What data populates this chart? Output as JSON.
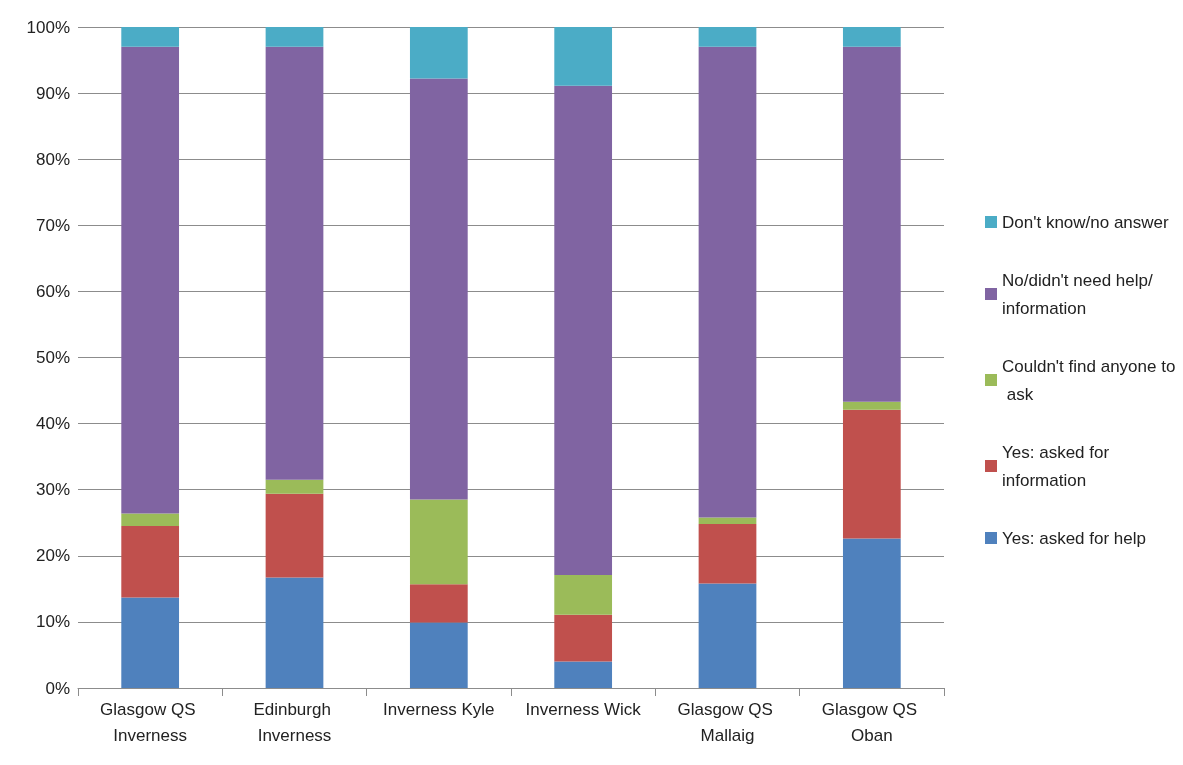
{
  "chart_data": {
    "type": "bar",
    "stacked": true,
    "categories": [
      "Glasgow QS Inverness",
      "Edinburgh Inverness",
      "Inverness Kyle",
      "Inverness Wick",
      "Glasgow QS Mallaig",
      "Glasgow QS Oban"
    ],
    "series": [
      {
        "name": "Yes: asked for help",
        "color": "#4f81bd",
        "values": [
          13.7,
          16.7,
          9.9,
          4.0,
          15.8,
          22.6
        ]
      },
      {
        "name": "Yes: asked for information",
        "color": "#c0504d",
        "values": [
          10.8,
          12.7,
          5.8,
          7.1,
          9.0,
          19.5
        ]
      },
      {
        "name": "Couldn't find anyone to ask",
        "color": "#9bbb59",
        "values": [
          1.9,
          2.1,
          12.8,
          6.0,
          1.0,
          1.2
        ]
      },
      {
        "name": "No/didn't need help/ information",
        "color": "#8064a2",
        "values": [
          70.6,
          65.5,
          63.7,
          74.0,
          71.2,
          53.7
        ]
      },
      {
        "name": "Don't know/no answer",
        "color": "#4bacc6",
        "values": [
          3.0,
          3.0,
          7.8,
          8.9,
          3.0,
          3.0
        ]
      }
    ],
    "ylim": [
      0,
      100
    ],
    "yticks": [
      {
        "value": 0,
        "label": "0%"
      },
      {
        "value": 10,
        "label": "10%"
      },
      {
        "value": 20,
        "label": "20%"
      },
      {
        "value": 30,
        "label": "30%"
      },
      {
        "value": 40,
        "label": "40%"
      },
      {
        "value": 50,
        "label": "50%"
      },
      {
        "value": 60,
        "label": "60%"
      },
      {
        "value": 70,
        "label": "70%"
      },
      {
        "value": 80,
        "label": "80%"
      },
      {
        "value": 90,
        "label": "90%"
      },
      {
        "value": 100,
        "label": "100%"
      }
    ],
    "grid": "y",
    "legend": "right"
  }
}
